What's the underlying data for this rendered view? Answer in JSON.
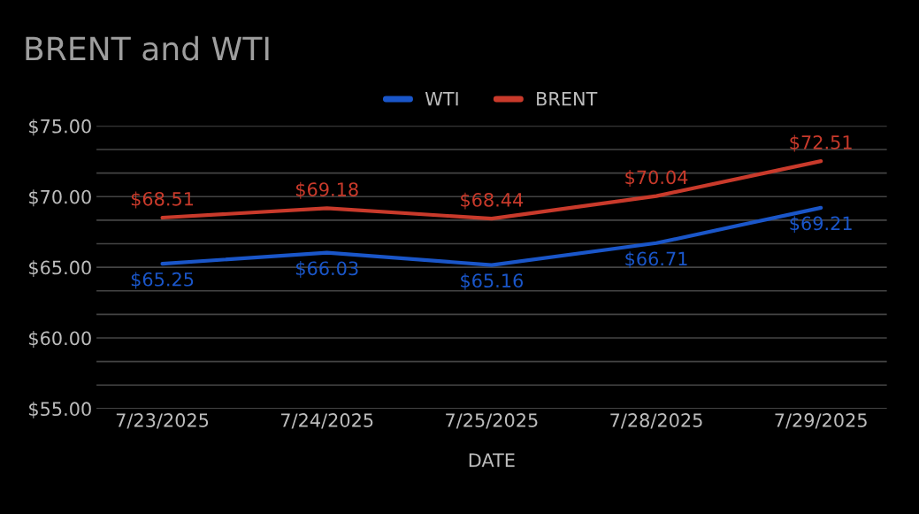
{
  "chart_data": {
    "type": "line",
    "title": "BRENT and WTI",
    "xlabel": "DATE",
    "categories": [
      "7/23/2025",
      "7/24/2025",
      "7/25/2025",
      "7/28/2025",
      "7/29/2025"
    ],
    "series": [
      {
        "name": "WTI",
        "color": "#1a56c9",
        "values": [
          65.25,
          66.03,
          65.16,
          66.71,
          69.21
        ],
        "value_labels": [
          "$65.25",
          "$66.03",
          "$65.16",
          "$66.71",
          "$69.21"
        ]
      },
      {
        "name": "BRENT",
        "color": "#c93a2b",
        "values": [
          68.51,
          69.18,
          68.44,
          70.04,
          72.51
        ],
        "value_labels": [
          "$68.51",
          "$69.18",
          "$68.44",
          "$70.04",
          "$72.51"
        ]
      }
    ],
    "ylim": [
      55,
      75
    ],
    "yticks": [
      {
        "value": 55,
        "label": "$55.00"
      },
      {
        "value": 56.667,
        "label": null
      },
      {
        "value": 58.333,
        "label": null
      },
      {
        "value": 60,
        "label": "$60.00"
      },
      {
        "value": 61.667,
        "label": null
      },
      {
        "value": 63.333,
        "label": null
      },
      {
        "value": 65,
        "label": "$65.00"
      },
      {
        "value": 66.667,
        "label": null
      },
      {
        "value": 68.333,
        "label": null
      },
      {
        "value": 70,
        "label": "$70.00"
      },
      {
        "value": 71.667,
        "label": null
      },
      {
        "value": 73.333,
        "label": null
      },
      {
        "value": 75,
        "label": "$75.00"
      }
    ],
    "grid": "y",
    "legend": "top",
    "marker": "none",
    "line_style": "solid"
  }
}
